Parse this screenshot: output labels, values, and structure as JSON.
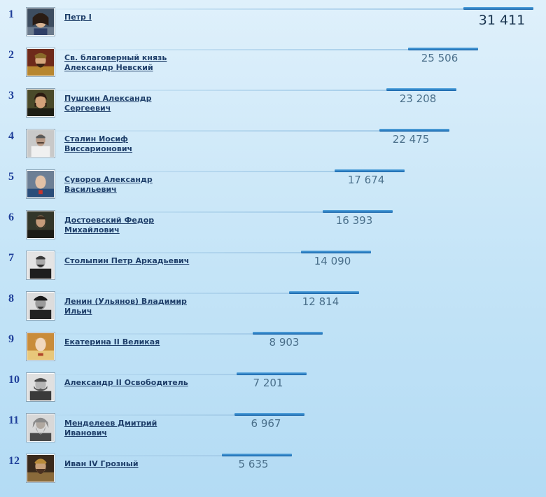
{
  "ranking": {
    "items": [
      {
        "rank": "1",
        "name": "Петр I",
        "value": "31 411",
        "score": 31411,
        "icon": "portrait-peter-i-icon"
      },
      {
        "rank": "2",
        "name": "Св. благоверный князь Александр Невский",
        "value": "25 506",
        "score": 25506,
        "icon": "portrait-alexander-nevsky-icon"
      },
      {
        "rank": "3",
        "name": "Пушкин Александр Сергеевич",
        "value": "23 208",
        "score": 23208,
        "icon": "portrait-pushkin-icon"
      },
      {
        "rank": "4",
        "name": "Сталин Иосиф Виссарионович",
        "value": "22 475",
        "score": 22475,
        "icon": "portrait-stalin-icon"
      },
      {
        "rank": "5",
        "name": "Суворов Александр Васильевич",
        "value": "17 674",
        "score": 17674,
        "icon": "portrait-suvorov-icon"
      },
      {
        "rank": "6",
        "name": "Достоевский Федор Михайлович",
        "value": "16 393",
        "score": 16393,
        "icon": "portrait-dostoevsky-icon"
      },
      {
        "rank": "7",
        "name": "Столыпин Петр Аркадьевич",
        "value": "14 090",
        "score": 14090,
        "icon": "portrait-stolypin-icon"
      },
      {
        "rank": "8",
        "name": "Ленин (Ульянов) Владимир Ильич",
        "value": "12 814",
        "score": 12814,
        "icon": "portrait-lenin-icon"
      },
      {
        "rank": "9",
        "name": "Екатерина II Великая",
        "value": "8 903",
        "score": 8903,
        "icon": "portrait-catherine-ii-icon"
      },
      {
        "rank": "10",
        "name": "Александр II Освободитель",
        "value": "7 201",
        "score": 7201,
        "icon": "portrait-alexander-ii-icon"
      },
      {
        "rank": "11",
        "name": "Менделеев Дмитрий Иванович",
        "value": "6 967",
        "score": 6967,
        "icon": "portrait-mendeleev-icon"
      },
      {
        "rank": "12",
        "name": "Иван IV Грозный",
        "value": "5 635",
        "score": 5635,
        "icon": "portrait-ivan-iv-icon"
      }
    ]
  },
  "colors": {
    "bar": "#2b7fc3",
    "rank": "#1f3f9a",
    "link": "#1f3f6a",
    "value": "#4a6f8a",
    "background": "#c4e4f7"
  }
}
